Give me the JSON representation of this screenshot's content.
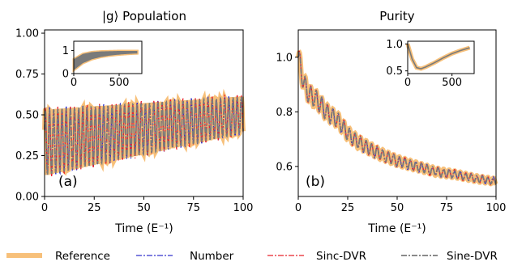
{
  "chart_data": [
    {
      "type": "line",
      "title": "|g⟩ Population",
      "xlabel": "Time (E⁻¹)",
      "ylabel": "",
      "xlim": [
        0,
        100
      ],
      "ylim": [
        0,
        1.02
      ],
      "xticks": [
        "0",
        "25",
        "50",
        "75",
        "100"
      ],
      "yticks": [
        "0.00",
        "0.25",
        "0.50",
        "0.75",
        "1.00"
      ],
      "panel_label": "(a)",
      "oscillation": {
        "center_start": 0.33,
        "center_end": 0.5,
        "amp_start": 0.2,
        "amp_end": 0.11,
        "period": 2.1
      },
      "inset": {
        "xlim": [
          0,
          750
        ],
        "ylim": [
          0,
          1.4
        ],
        "xticks": [
          "0",
          "500"
        ],
        "yticks": [
          "0",
          "1"
        ],
        "envelope": {
          "x": [
            0,
            100,
            200,
            300,
            400,
            500,
            600,
            700
          ],
          "lower": [
            0.15,
            0.45,
            0.62,
            0.72,
            0.78,
            0.82,
            0.85,
            0.87
          ],
          "upper": [
            0.62,
            0.85,
            0.93,
            0.96,
            0.97,
            0.98,
            0.98,
            0.98
          ]
        }
      }
    },
    {
      "type": "line",
      "title": "Purity",
      "xlabel": "Time (E⁻¹)",
      "ylabel": "",
      "xlim": [
        0,
        100
      ],
      "ylim": [
        0.49,
        1.1
      ],
      "xticks": [
        "0",
        "25",
        "50",
        "75",
        "100"
      ],
      "yticks": [
        "0.6",
        "0.8",
        "1.0"
      ],
      "panel_label": "(b)",
      "decay": {
        "x": [
          0,
          3,
          6,
          10,
          14,
          20,
          25,
          30,
          40,
          50,
          60,
          70,
          80,
          90,
          100
        ],
        "y": [
          1.0,
          0.9,
          0.86,
          0.84,
          0.8,
          0.77,
          0.72,
          0.69,
          0.65,
          0.62,
          0.6,
          0.58,
          0.57,
          0.555,
          0.545
        ]
      },
      "inset": {
        "xlim": [
          0,
          750
        ],
        "ylim": [
          0.45,
          1.05
        ],
        "xticks": [
          "0",
          "500"
        ],
        "yticks": [
          "0.5",
          "1.0"
        ],
        "curve": {
          "x": [
            0,
            50,
            100,
            150,
            200,
            300,
            400,
            500,
            600,
            700
          ],
          "y": [
            1.0,
            0.72,
            0.56,
            0.54,
            0.57,
            0.65,
            0.74,
            0.82,
            0.88,
            0.93
          ]
        }
      }
    }
  ],
  "legend": [
    {
      "label": "Reference",
      "color": "#f7c07a",
      "dash": "",
      "width": 6
    },
    {
      "label": "Number",
      "color": "#3333cc",
      "dash": "7 2 2 2",
      "width": 1.3
    },
    {
      "label": "Sinc-DVR",
      "color": "#e8202a",
      "dash": "7 2 2 2",
      "width": 1.3
    },
    {
      "label": "Sine-DVR",
      "color": "#7a7a7a",
      "dash": "7 2 2 2",
      "width": 1.8
    }
  ]
}
